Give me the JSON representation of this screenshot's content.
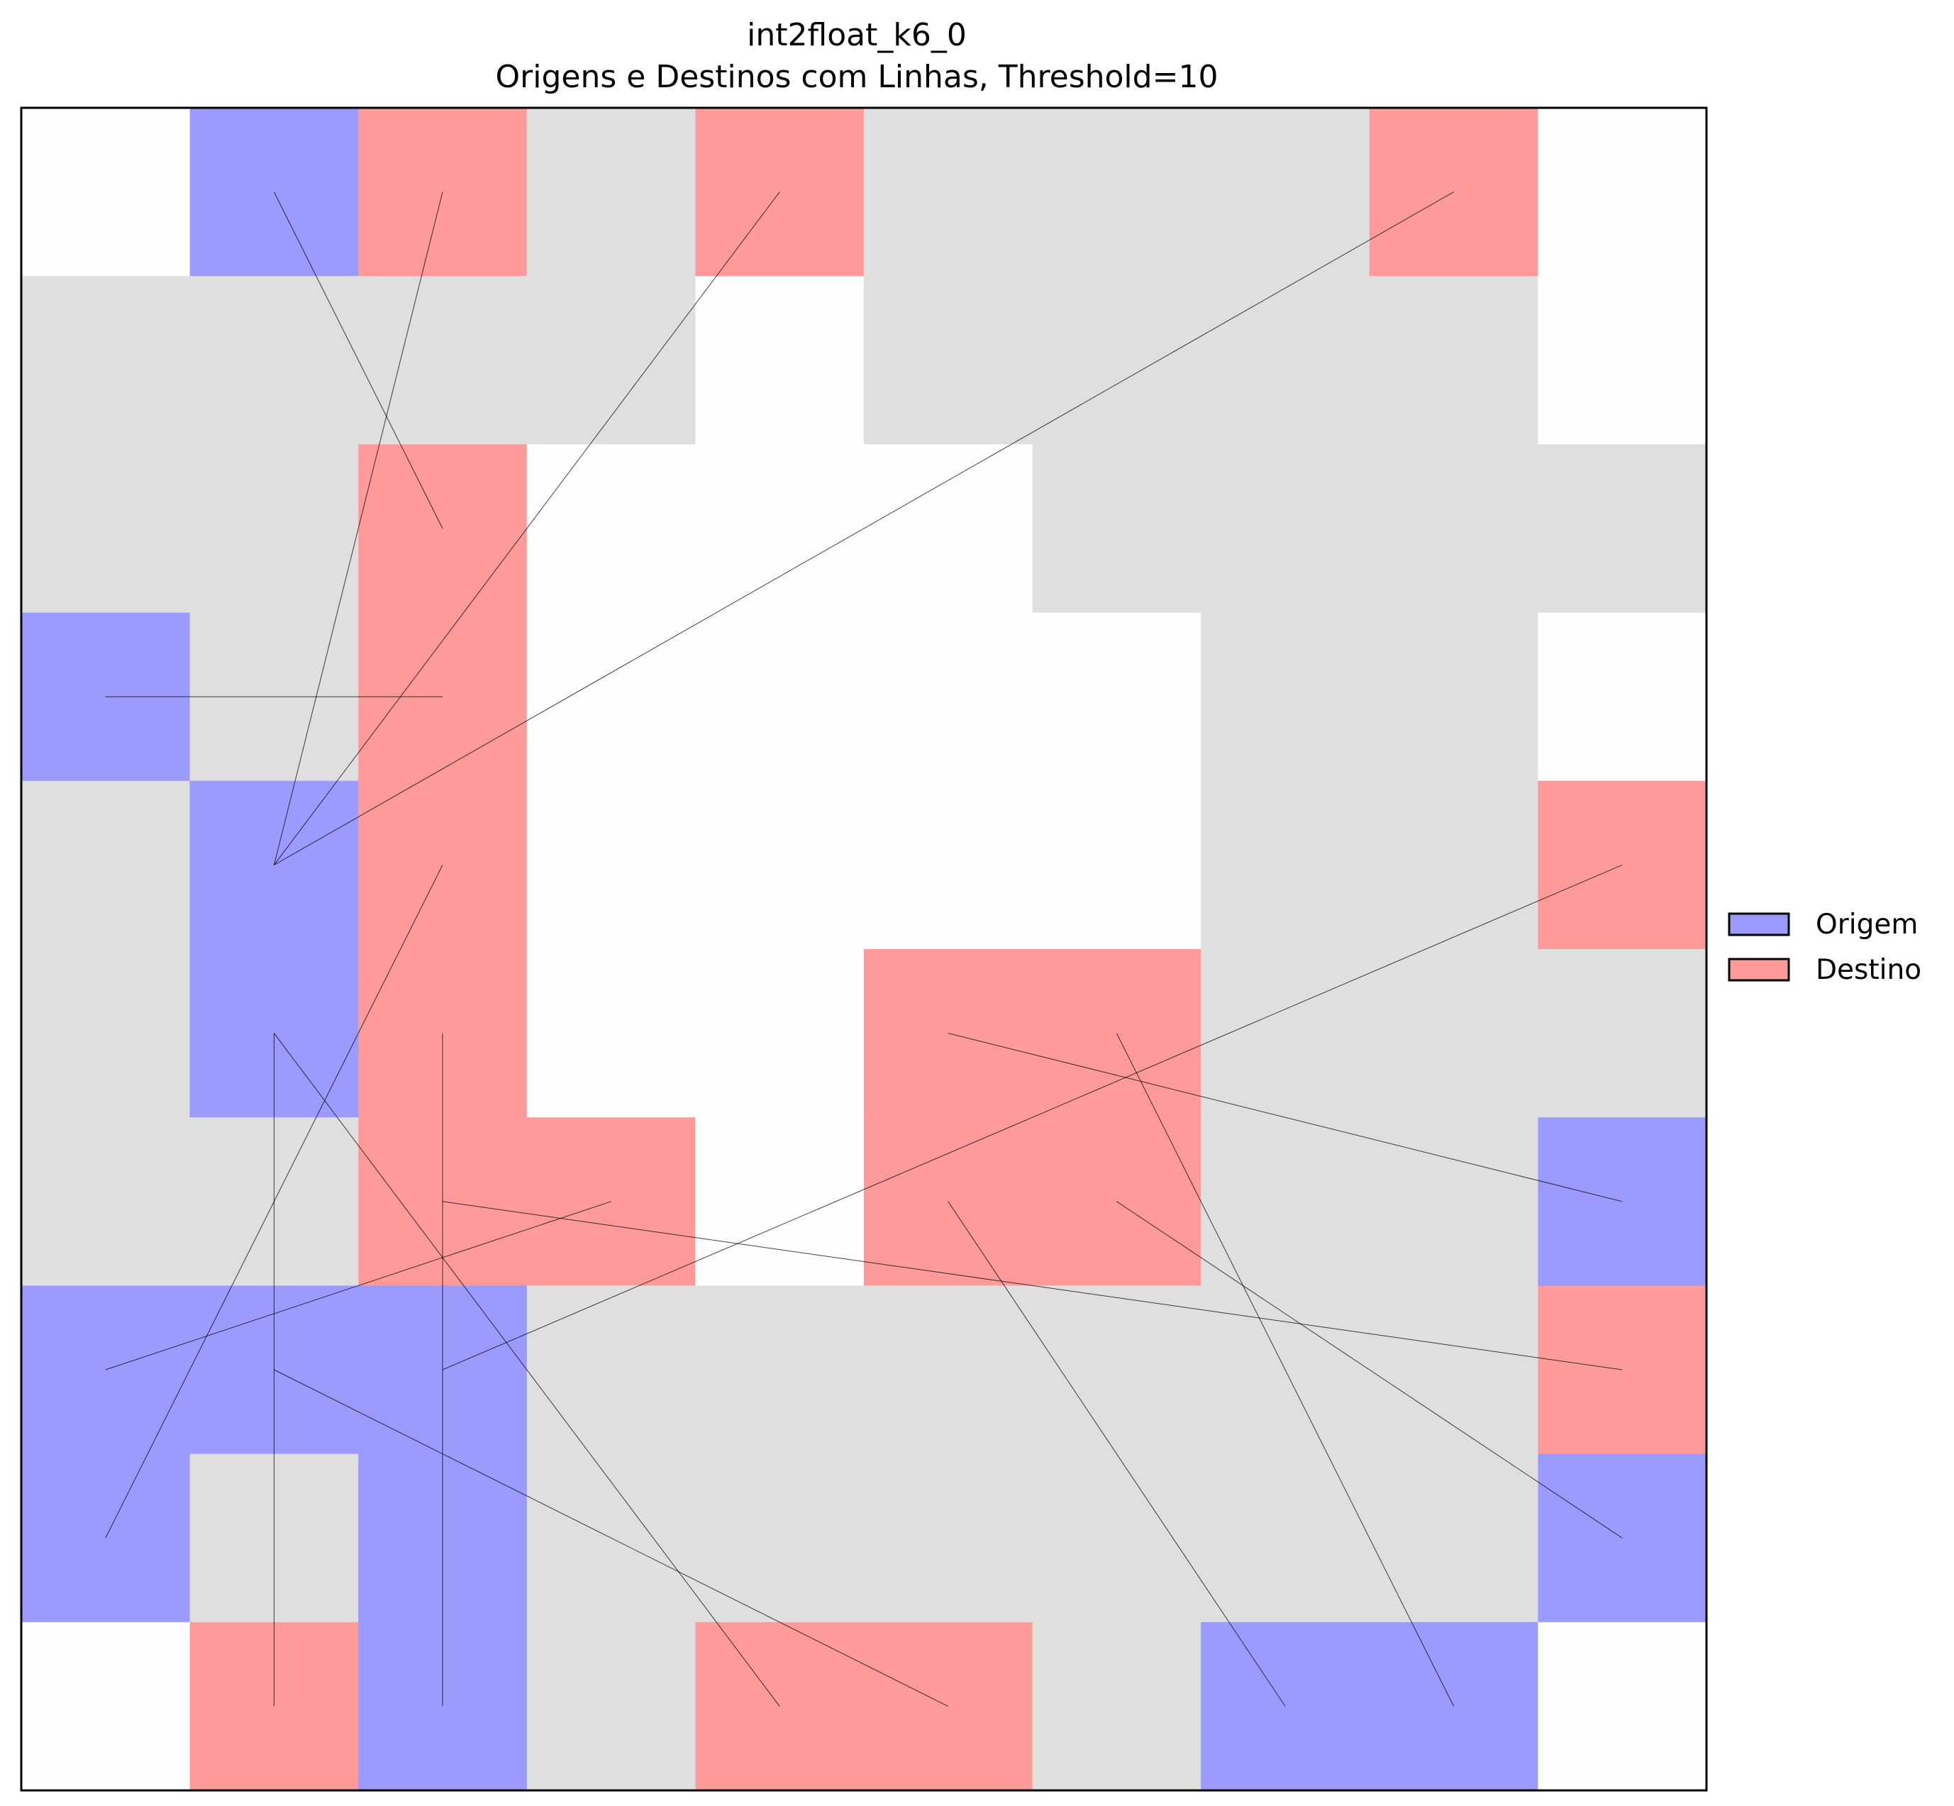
{
  "chart_data": {
    "type": "heatmap",
    "title": "int2float_k6_0",
    "subtitle": "Origens e Destinos com Linhas, Threshold=10",
    "xlabel": "",
    "ylabel": "",
    "grid_size": [
      10,
      10
    ],
    "axes_visible": false,
    "colors": {
      "empty": "#fefefe",
      "path": "#dfdfdf",
      "origem": "#9a9aff",
      "destino": "#ff9a9a",
      "line": "#000000"
    },
    "cell_legend": {
      "E": "empty",
      "G": "path",
      "O": "origem",
      "D": "destino"
    },
    "cells": [
      "EODGDGGGDE",
      "GGGGEGGGGE",
      "GGDEEEGGGG",
      "OGDEEEEGGE",
      "GODEEEEGGD",
      "GODEEDDGGG",
      "GGDDEDDGGO",
      "OOOGGGGGGD",
      "OGOGGGGGGO",
      "EDOGDDGOOE"
    ],
    "legend": {
      "position": "center-right, outside",
      "entries": [
        {
          "label": "Origem",
          "color": "#9a9aff"
        },
        {
          "label": "Destino",
          "color": "#ff9a9a"
        }
      ]
    },
    "lines": [
      {
        "from": [
          1,
          0
        ],
        "to": [
          2,
          2
        ]
      },
      {
        "from": [
          1,
          4
        ],
        "to": [
          2,
          0
        ]
      },
      {
        "from": [
          1,
          4
        ],
        "to": [
          4,
          0
        ]
      },
      {
        "from": [
          1,
          4
        ],
        "to": [
          8,
          0
        ]
      },
      {
        "from": [
          0,
          3
        ],
        "to": [
          2,
          3
        ]
      },
      {
        "from": [
          0,
          8
        ],
        "to": [
          2,
          4
        ]
      },
      {
        "from": [
          1,
          5
        ],
        "to": [
          1,
          9
        ]
      },
      {
        "from": [
          2,
          5
        ],
        "to": [
          2,
          9
        ]
      },
      {
        "from": [
          1,
          5
        ],
        "to": [
          4,
          9
        ]
      },
      {
        "from": [
          0,
          7
        ],
        "to": [
          3,
          6
        ]
      },
      {
        "from": [
          1,
          7
        ],
        "to": [
          5,
          9
        ]
      },
      {
        "from": [
          2,
          7
        ],
        "to": [
          9,
          4
        ]
      },
      {
        "from": [
          9,
          6
        ],
        "to": [
          5,
          5
        ]
      },
      {
        "from": [
          9,
          7
        ],
        "to": [
          2,
          6
        ]
      },
      {
        "from": [
          9,
          8
        ],
        "to": [
          6,
          6
        ]
      },
      {
        "from": [
          7,
          9
        ],
        "to": [
          5,
          6
        ]
      },
      {
        "from": [
          8,
          9
        ],
        "to": [
          6,
          5
        ]
      }
    ]
  }
}
